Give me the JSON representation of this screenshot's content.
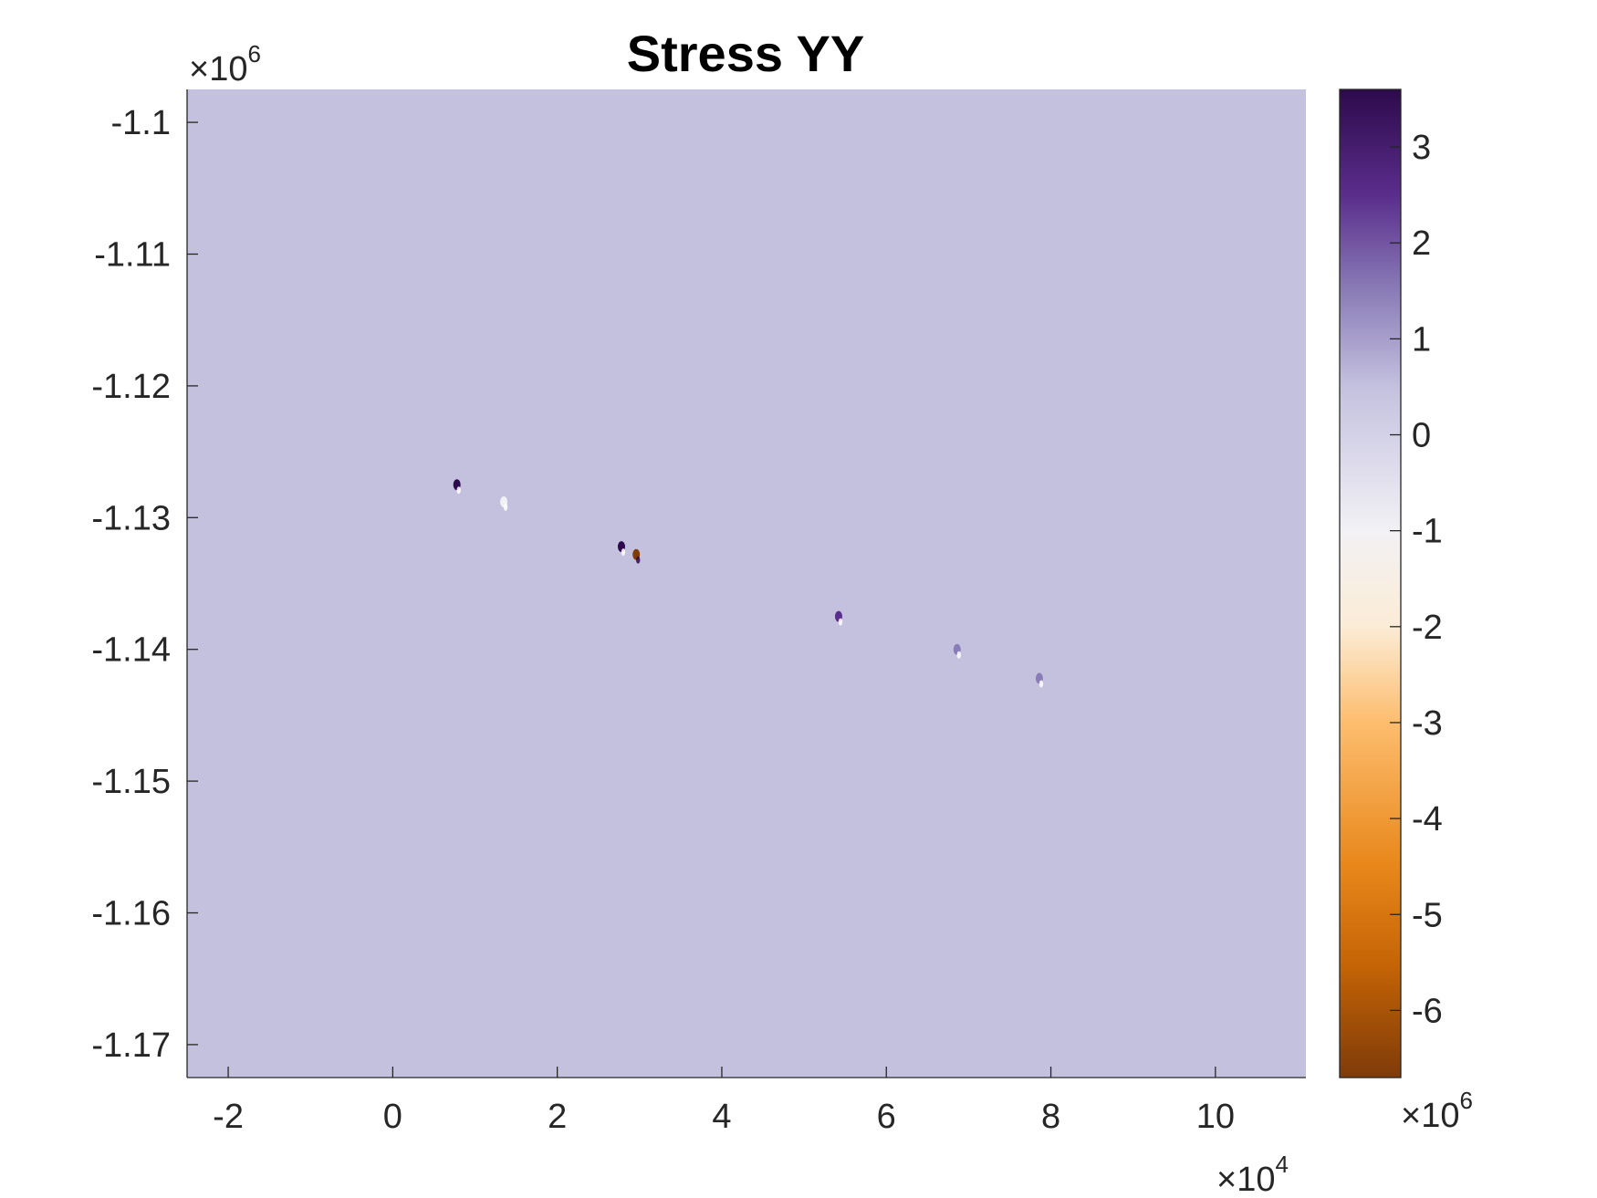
{
  "chart_data": {
    "type": "heatmap",
    "title": "Stress YY",
    "xlabel": "",
    "ylabel": "",
    "x_multiplier": {
      "base": "×10",
      "power": "4"
    },
    "y_multiplier": {
      "base": "×10",
      "power": "6"
    },
    "xlim": [
      -2.5,
      11.1
    ],
    "ylim": [
      -1.1725,
      -1.0975
    ],
    "x_ticks": [
      -2,
      0,
      2,
      4,
      6,
      8,
      10
    ],
    "x_tick_labels": [
      "-2",
      "0",
      "2",
      "4",
      "6",
      "8",
      "10"
    ],
    "y_ticks": [
      -1.1,
      -1.11,
      -1.12,
      -1.13,
      -1.14,
      -1.15,
      -1.16,
      -1.17
    ],
    "y_tick_labels": [
      "-1.1",
      "-1.11",
      "-1.12",
      "-1.13",
      "-1.14",
      "-1.15",
      "-1.16",
      "-1.17"
    ],
    "background_value": 0.5,
    "colorbar": {
      "limits": [
        -6.7,
        3.6
      ],
      "ticks": [
        3,
        2,
        1,
        0,
        -1,
        -2,
        -3,
        -4,
        -5,
        -6
      ],
      "tick_labels": [
        "3",
        "2",
        "1",
        "0",
        "-1",
        "-2",
        "-3",
        "-4",
        "-5",
        "-6"
      ],
      "multiplier": {
        "base": "×10",
        "power": "6"
      },
      "colormap": "PuOr",
      "color_stops": [
        {
          "value": 3.6,
          "color": "#2d0a4b"
        },
        {
          "value": 2.5,
          "color": "#5a2d8c"
        },
        {
          "value": 1.5,
          "color": "#8a7cb7"
        },
        {
          "value": 0.5,
          "color": "#c4c1df"
        },
        {
          "value": -1.0,
          "color": "#f2f1f5"
        },
        {
          "value": -2.0,
          "color": "#fbecd6"
        },
        {
          "value": -3.0,
          "color": "#fdbd6e"
        },
        {
          "value": -4.5,
          "color": "#e8871a"
        },
        {
          "value": -5.5,
          "color": "#c66506"
        },
        {
          "value": -6.7,
          "color": "#7f3b08"
        }
      ]
    },
    "hotspots": [
      {
        "x": 0.78,
        "y": -1.1275,
        "peak_value": 3.5,
        "tail_color": "#ffffff"
      },
      {
        "x": 1.35,
        "y": -1.1288,
        "peak_value": -0.5,
        "tail_color": "#ffffff"
      },
      {
        "x": 2.78,
        "y": -1.1322,
        "peak_value": 3.5,
        "tail_color": "#ffffff"
      },
      {
        "x": 2.96,
        "y": -1.1328,
        "peak_value": -6.5,
        "tail_color": "#2d0a4b"
      },
      {
        "x": 5.42,
        "y": -1.1375,
        "peak_value": 2.0,
        "tail_color": "#ffffff"
      },
      {
        "x": 6.86,
        "y": -1.14,
        "peak_value": 1.5,
        "tail_color": "#ffffff"
      },
      {
        "x": 7.86,
        "y": -1.1422,
        "peak_value": 1.5,
        "tail_color": "#ffffff"
      }
    ]
  }
}
